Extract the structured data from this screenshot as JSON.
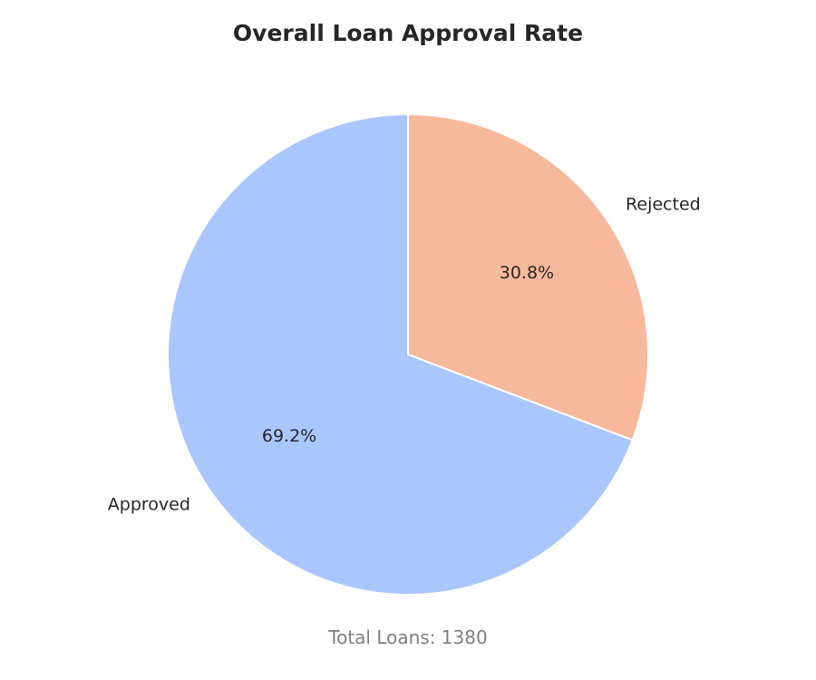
{
  "chart_data": {
    "type": "pie",
    "title": "Overall Loan Approval Rate",
    "slices": [
      {
        "label": "Rejected",
        "value": 30.8,
        "pct_label": "30.8%",
        "color": "#f7b99c"
      },
      {
        "label": "Approved",
        "value": 69.2,
        "pct_label": "69.2%",
        "color": "#aac7fd"
      }
    ],
    "start_angle_deg": 90,
    "direction": "clockwise",
    "wedge_edge_color": "#ffffff",
    "legend": "none"
  },
  "footer": {
    "total_text": "Total Loans: 1380"
  }
}
